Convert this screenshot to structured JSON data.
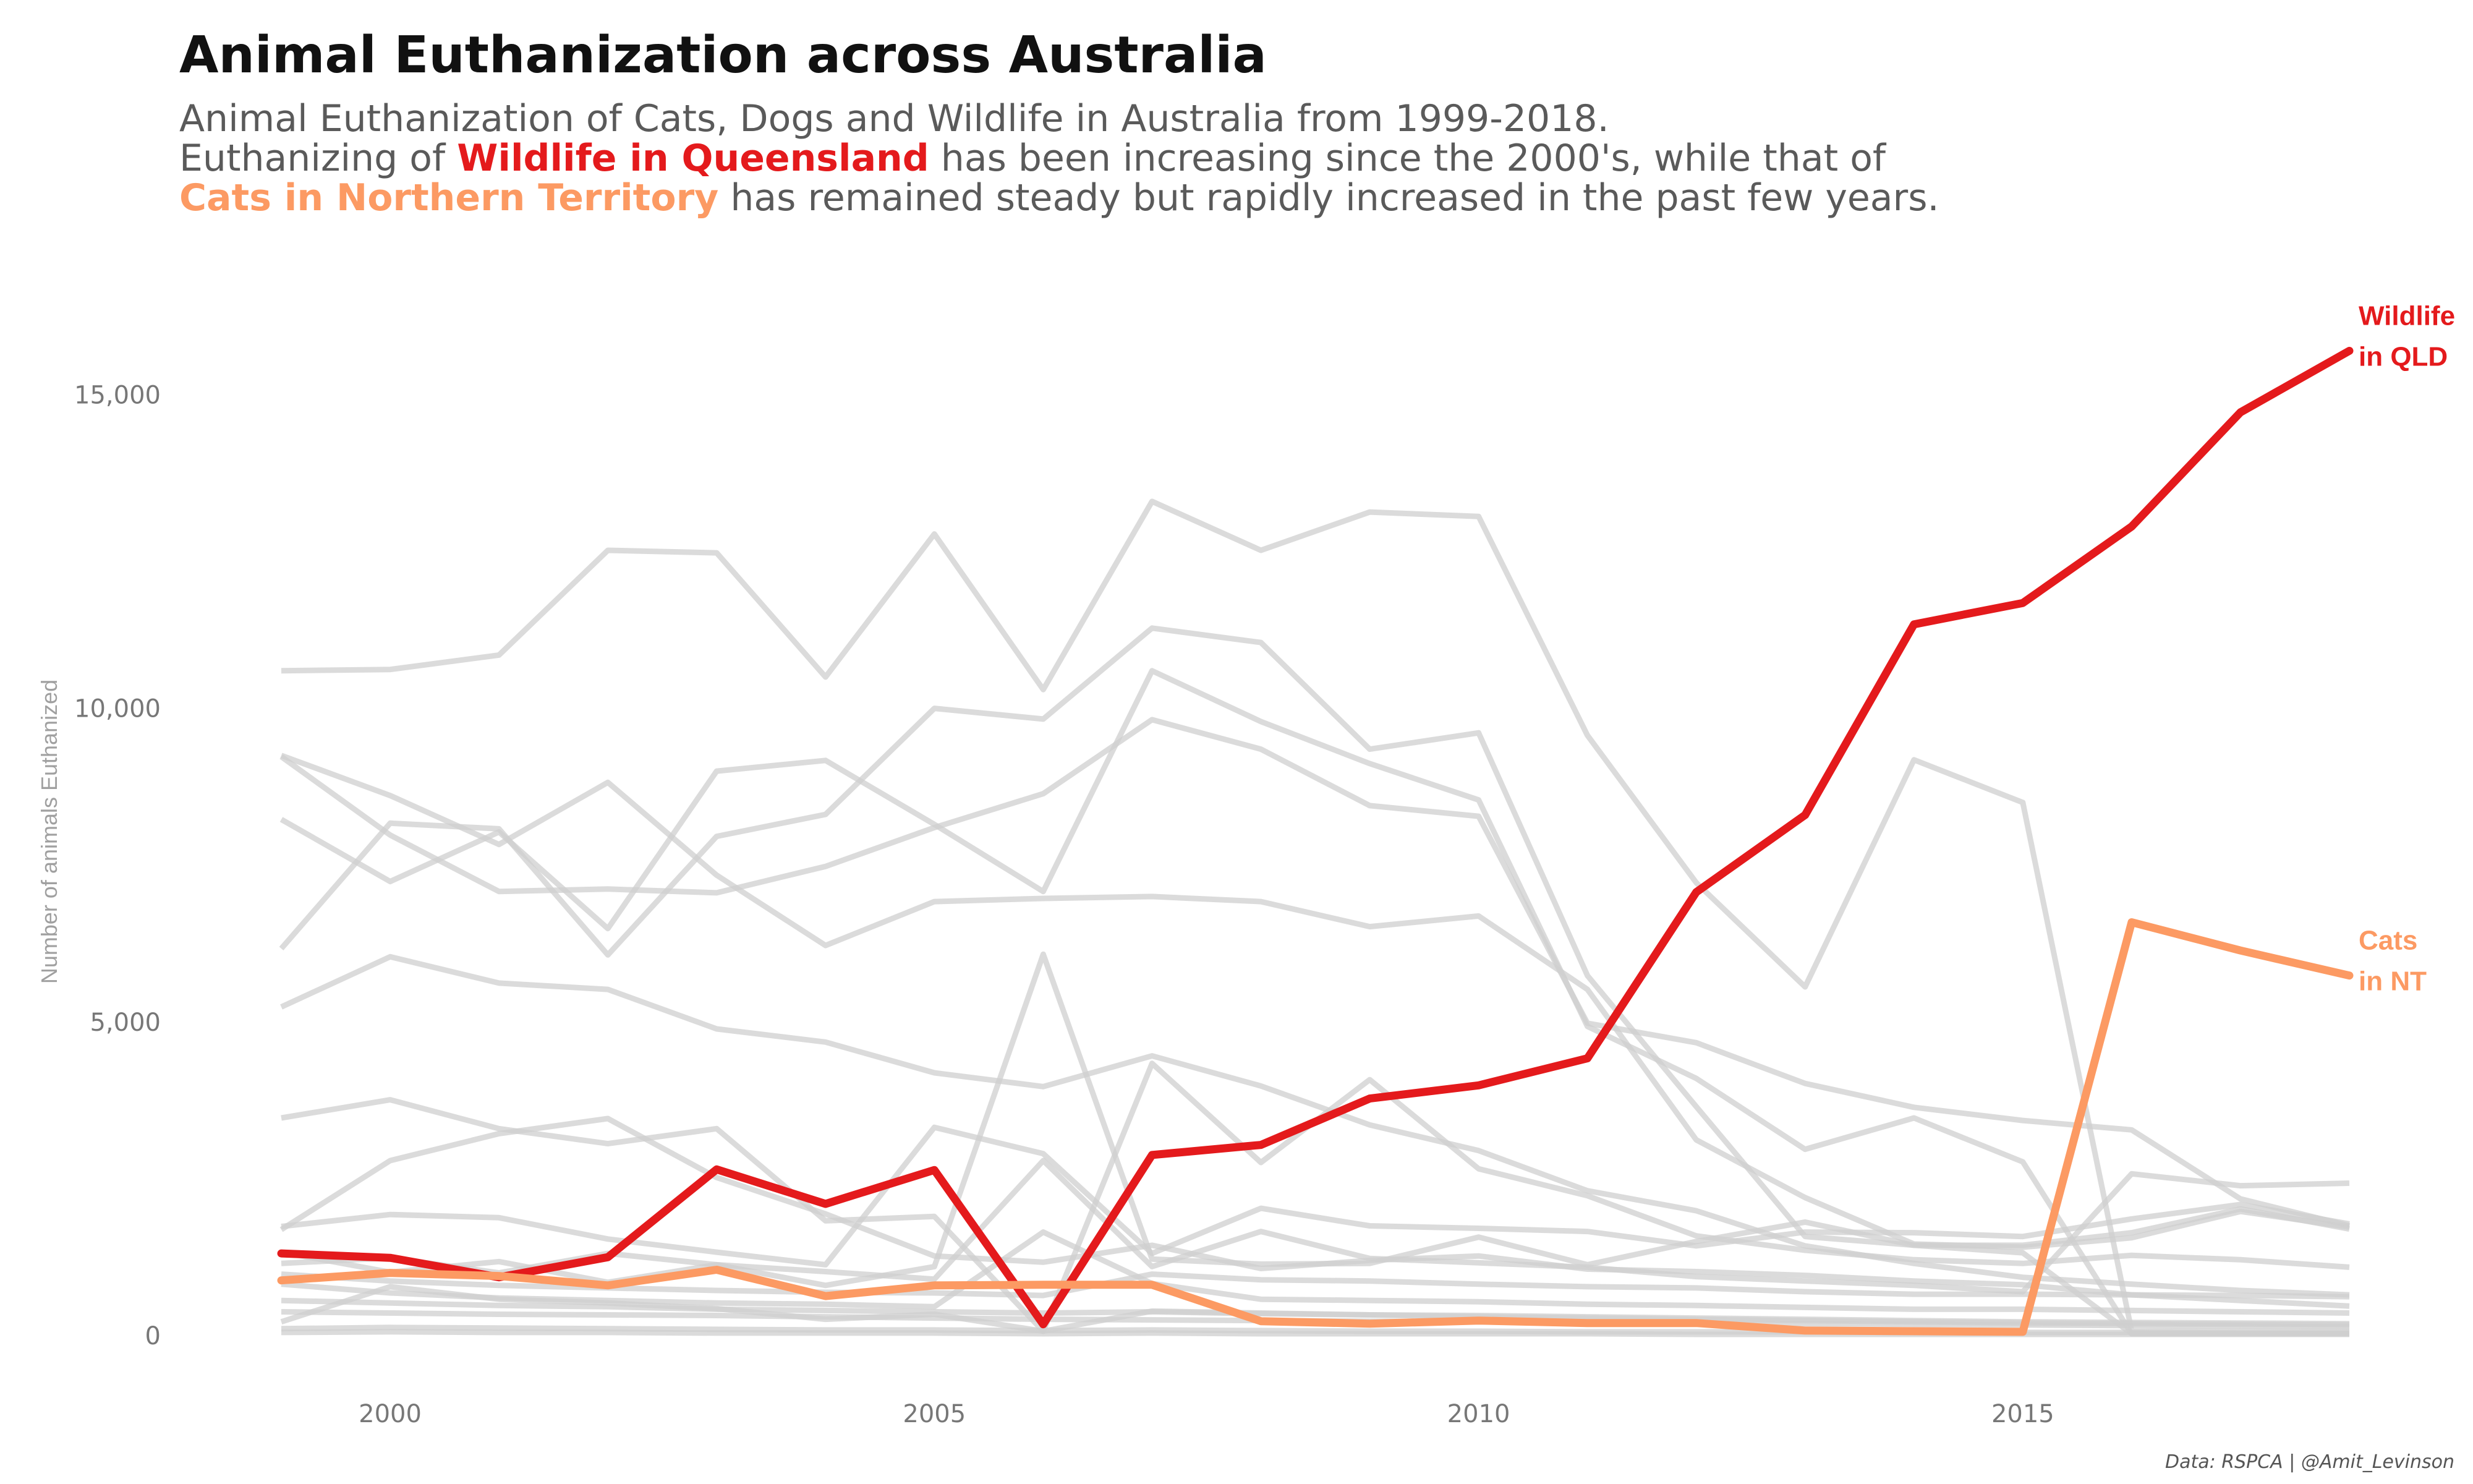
{
  "title": "Animal Euthanization across Australia",
  "subtitle": {
    "line1": "Animal Euthanization of Cats, Dogs and Wildlife in Australia from 1999-2018.",
    "line2_pre": "Euthanizing of ",
    "line2_hl": "Wildlife in Queensland",
    "line2_post": " has been increasing since the 2000's, while that of",
    "line3_hl": "Cats in Northern Territory",
    "line3_post": " has remained steady but rapidly increased in the past few years."
  },
  "caption": "Data: RSPCA | @Amit_Levinson",
  "colors": {
    "highlight_red": "#e41a1c",
    "highlight_orange": "#fc9a63",
    "background_lines": "#cfcfcf"
  },
  "chart_data": {
    "type": "line",
    "title": "Animal Euthanization across Australia",
    "xlabel": "",
    "ylabel": "Number of animals Euthanized",
    "xlim": [
      1999,
      2018
    ],
    "ylim": [
      0,
      16000
    ],
    "x_ticks": [
      2000,
      2005,
      2010,
      2015
    ],
    "x_tick_labels": [
      "2000",
      "2005",
      "2010",
      "2015"
    ],
    "y_ticks": [
      0,
      5000,
      10000,
      15000
    ],
    "y_tick_labels": [
      "0",
      "5,000",
      "10,000",
      "15,000"
    ],
    "grid": false,
    "legend": "none (direct labels at line ends)",
    "x": [
      1999,
      2000,
      2001,
      2002,
      2003,
      2004,
      2005,
      2006,
      2007,
      2008,
      2009,
      2010,
      2011,
      2012,
      2013,
      2014,
      2015,
      2016,
      2017,
      2018
    ],
    "series": [
      {
        "values": [
          10600,
          10620,
          10850,
          12520,
          12480,
          10500,
          12780,
          10300,
          13300,
          12520,
          13130,
          13060,
          9570,
          7220,
          5560,
          9180,
          8500,
          70,
          70,
          70
        ]
      },
      {
        "values": [
          9230,
          7980,
          7080,
          7120,
          7060,
          7480,
          8100,
          8640,
          9820,
          9350,
          8450,
          8280,
          4980,
          4670,
          4020,
          3640,
          3430,
          3280,
          2180,
          1750
        ]
      },
      {
        "values": [
          9250,
          8610,
          7830,
          8820,
          7340,
          6220,
          6920,
          6970,
          7000,
          6920,
          6520,
          6690,
          5520,
          3120,
          2200,
          1460,
          1410,
          1560,
          1980,
          1730
        ]
      },
      {
        "values": [
          8230,
          7240,
          8030,
          6490,
          9000,
          9170,
          8150,
          7080,
          10600,
          9790,
          9120,
          8540,
          4930,
          4100,
          2970,
          3470,
          2770,
          30,
          30,
          30
        ]
      },
      {
        "values": [
          6170,
          8170,
          8080,
          6070,
          7960,
          8310,
          10000,
          9830,
          11280,
          11050,
          9350,
          9610,
          5740,
          3650,
          1580,
          1440,
          1440,
          1640,
          2020,
          1700
        ]
      },
      {
        "values": [
          5240,
          6040,
          5620,
          5520,
          4890,
          4680,
          4190,
          3970,
          4460,
          3980,
          3360,
          2950,
          2310,
          1990,
          1430,
          1150,
          930,
          820,
          720,
          650
        ]
      },
      {
        "values": [
          3470,
          3760,
          3300,
          3060,
          3300,
          1830,
          1900,
          70,
          4340,
          2760,
          4080,
          2660,
          2230,
          1590,
          1360,
          1210,
          1150,
          1280,
          1210,
          1090
        ]
      },
      {
        "values": [
          1740,
          1930,
          1880,
          1540,
          1330,
          1130,
          3320,
          2900,
          1310,
          2030,
          1750,
          1710,
          1660,
          1430,
          1650,
          1640,
          1580,
          1860,
          2090,
          1780
        ]
      },
      {
        "values": [
          1690,
          2790,
          3220,
          3460,
          2520,
          1940,
          1270,
          1170,
          1440,
          1070,
          1200,
          1270,
          1060,
          1020,
          960,
          870,
          810,
          650,
          560,
          470
        ]
      },
      {
        "values": [
          1330,
          1010,
          1180,
          850,
          1130,
          800,
          1100,
          6080,
          1220,
          1140,
          1150,
          1570,
          1130,
          1500,
          1810,
          1440,
          1320,
          30,
          30,
          30
        ]
      },
      {
        "values": [
          1150,
          1240,
          1000,
          1310,
          1130,
          1020,
          900,
          2790,
          1100,
          1660,
          1230,
          1160,
          1090,
          940,
          870,
          800,
          700,
          2580,
          2390,
          2430
        ]
      },
      {
        "values": [
          980,
          870,
          800,
          760,
          720,
          690,
          680,
          640,
          980,
          890,
          870,
          820,
          780,
          760,
          700,
          660,
          660,
          650,
          640,
          620
        ]
      },
      {
        "values": [
          820,
          680,
          600,
          560,
          520,
          500,
          460,
          1650,
          830,
          580,
          560,
          540,
          500,
          480,
          450,
          420,
          420,
          400,
          380,
          360
        ]
      },
      {
        "values": [
          560,
          520,
          480,
          460,
          420,
          400,
          380,
          360,
          380,
          350,
          330,
          320,
          300,
          280,
          260,
          240,
          220,
          210,
          200,
          190
        ]
      },
      {
        "values": [
          380,
          360,
          340,
          330,
          320,
          300,
          280,
          260,
          250,
          240,
          230,
          220,
          210,
          200,
          190,
          180,
          170,
          160,
          150,
          140
        ]
      },
      {
        "values": [
          220,
          780,
          580,
          520,
          430,
          260,
          340,
          70,
          390,
          360,
          330,
          300,
          280,
          260,
          240,
          220,
          200,
          190,
          180,
          170
        ]
      },
      {
        "values": [
          110,
          130,
          120,
          110,
          100,
          90,
          90,
          80,
          90,
          80,
          70,
          70,
          60,
          60,
          60,
          50,
          50,
          50,
          40,
          40
        ]
      },
      {
        "values": [
          50,
          60,
          50,
          50,
          40,
          40,
          40,
          30,
          40,
          30,
          30,
          30,
          30,
          20,
          20,
          20,
          20,
          20,
          20,
          20
        ]
      },
      {
        "name": "Wildlife in QLD",
        "highlight": true,
        "color": "#e41a1c",
        "label": "Wildlife in QLD",
        "label_lines": [
          "Wildlife",
          "in QLD"
        ],
        "values": [
          1310,
          1240,
          930,
          1250,
          2650,
          2100,
          2640,
          180,
          2880,
          3040,
          3780,
          3990,
          4420,
          7070,
          8300,
          11340,
          11680,
          12900,
          14720,
          15700
        ]
      },
      {
        "name": "Cats in NT",
        "highlight": true,
        "color": "#fc9a63",
        "label": "Cats in NT",
        "label_lines": [
          "Cats",
          "in NT"
        ],
        "values": [
          880,
          1000,
          950,
          800,
          1050,
          630,
          800,
          810,
          810,
          230,
          190,
          240,
          200,
          200,
          80,
          70,
          60,
          6590,
          6140,
          5740
        ]
      }
    ]
  }
}
